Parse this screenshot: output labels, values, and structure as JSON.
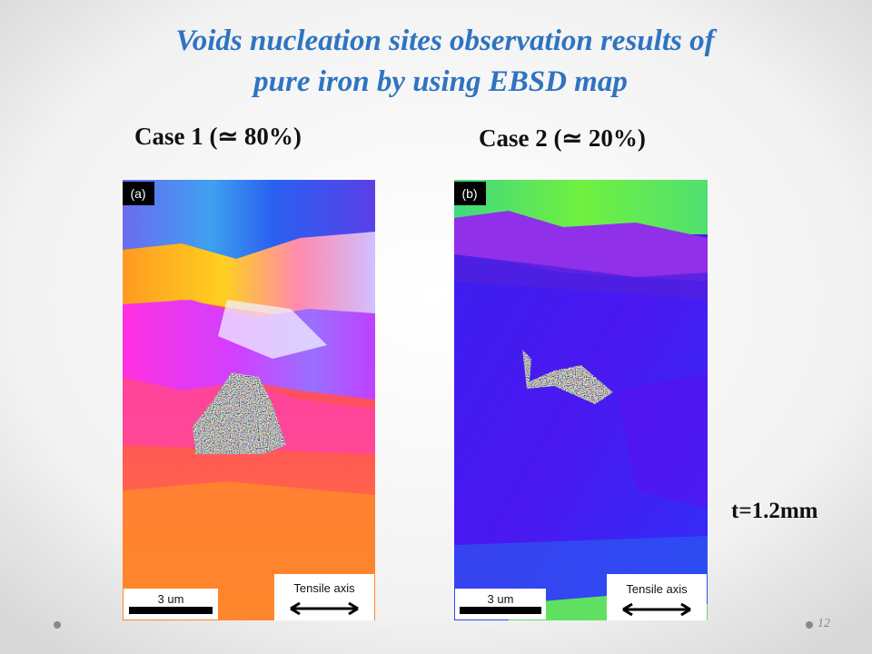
{
  "title": {
    "lines": [
      "Voids nucleation sites observation results of",
      "pure iron by using EBSD map"
    ]
  },
  "panels": [
    {
      "case": "Case 1 (≃ 80%)",
      "label": "(a)",
      "scale_bar": "3 um",
      "tensile_axis": "Tensile axis"
    },
    {
      "case": "Case 2 (≃ 20%)",
      "label": "(b)",
      "scale_bar": "3 um",
      "tensile_axis": "Tensile axis"
    }
  ],
  "thickness": "t=1.2mm",
  "page_number": "12"
}
